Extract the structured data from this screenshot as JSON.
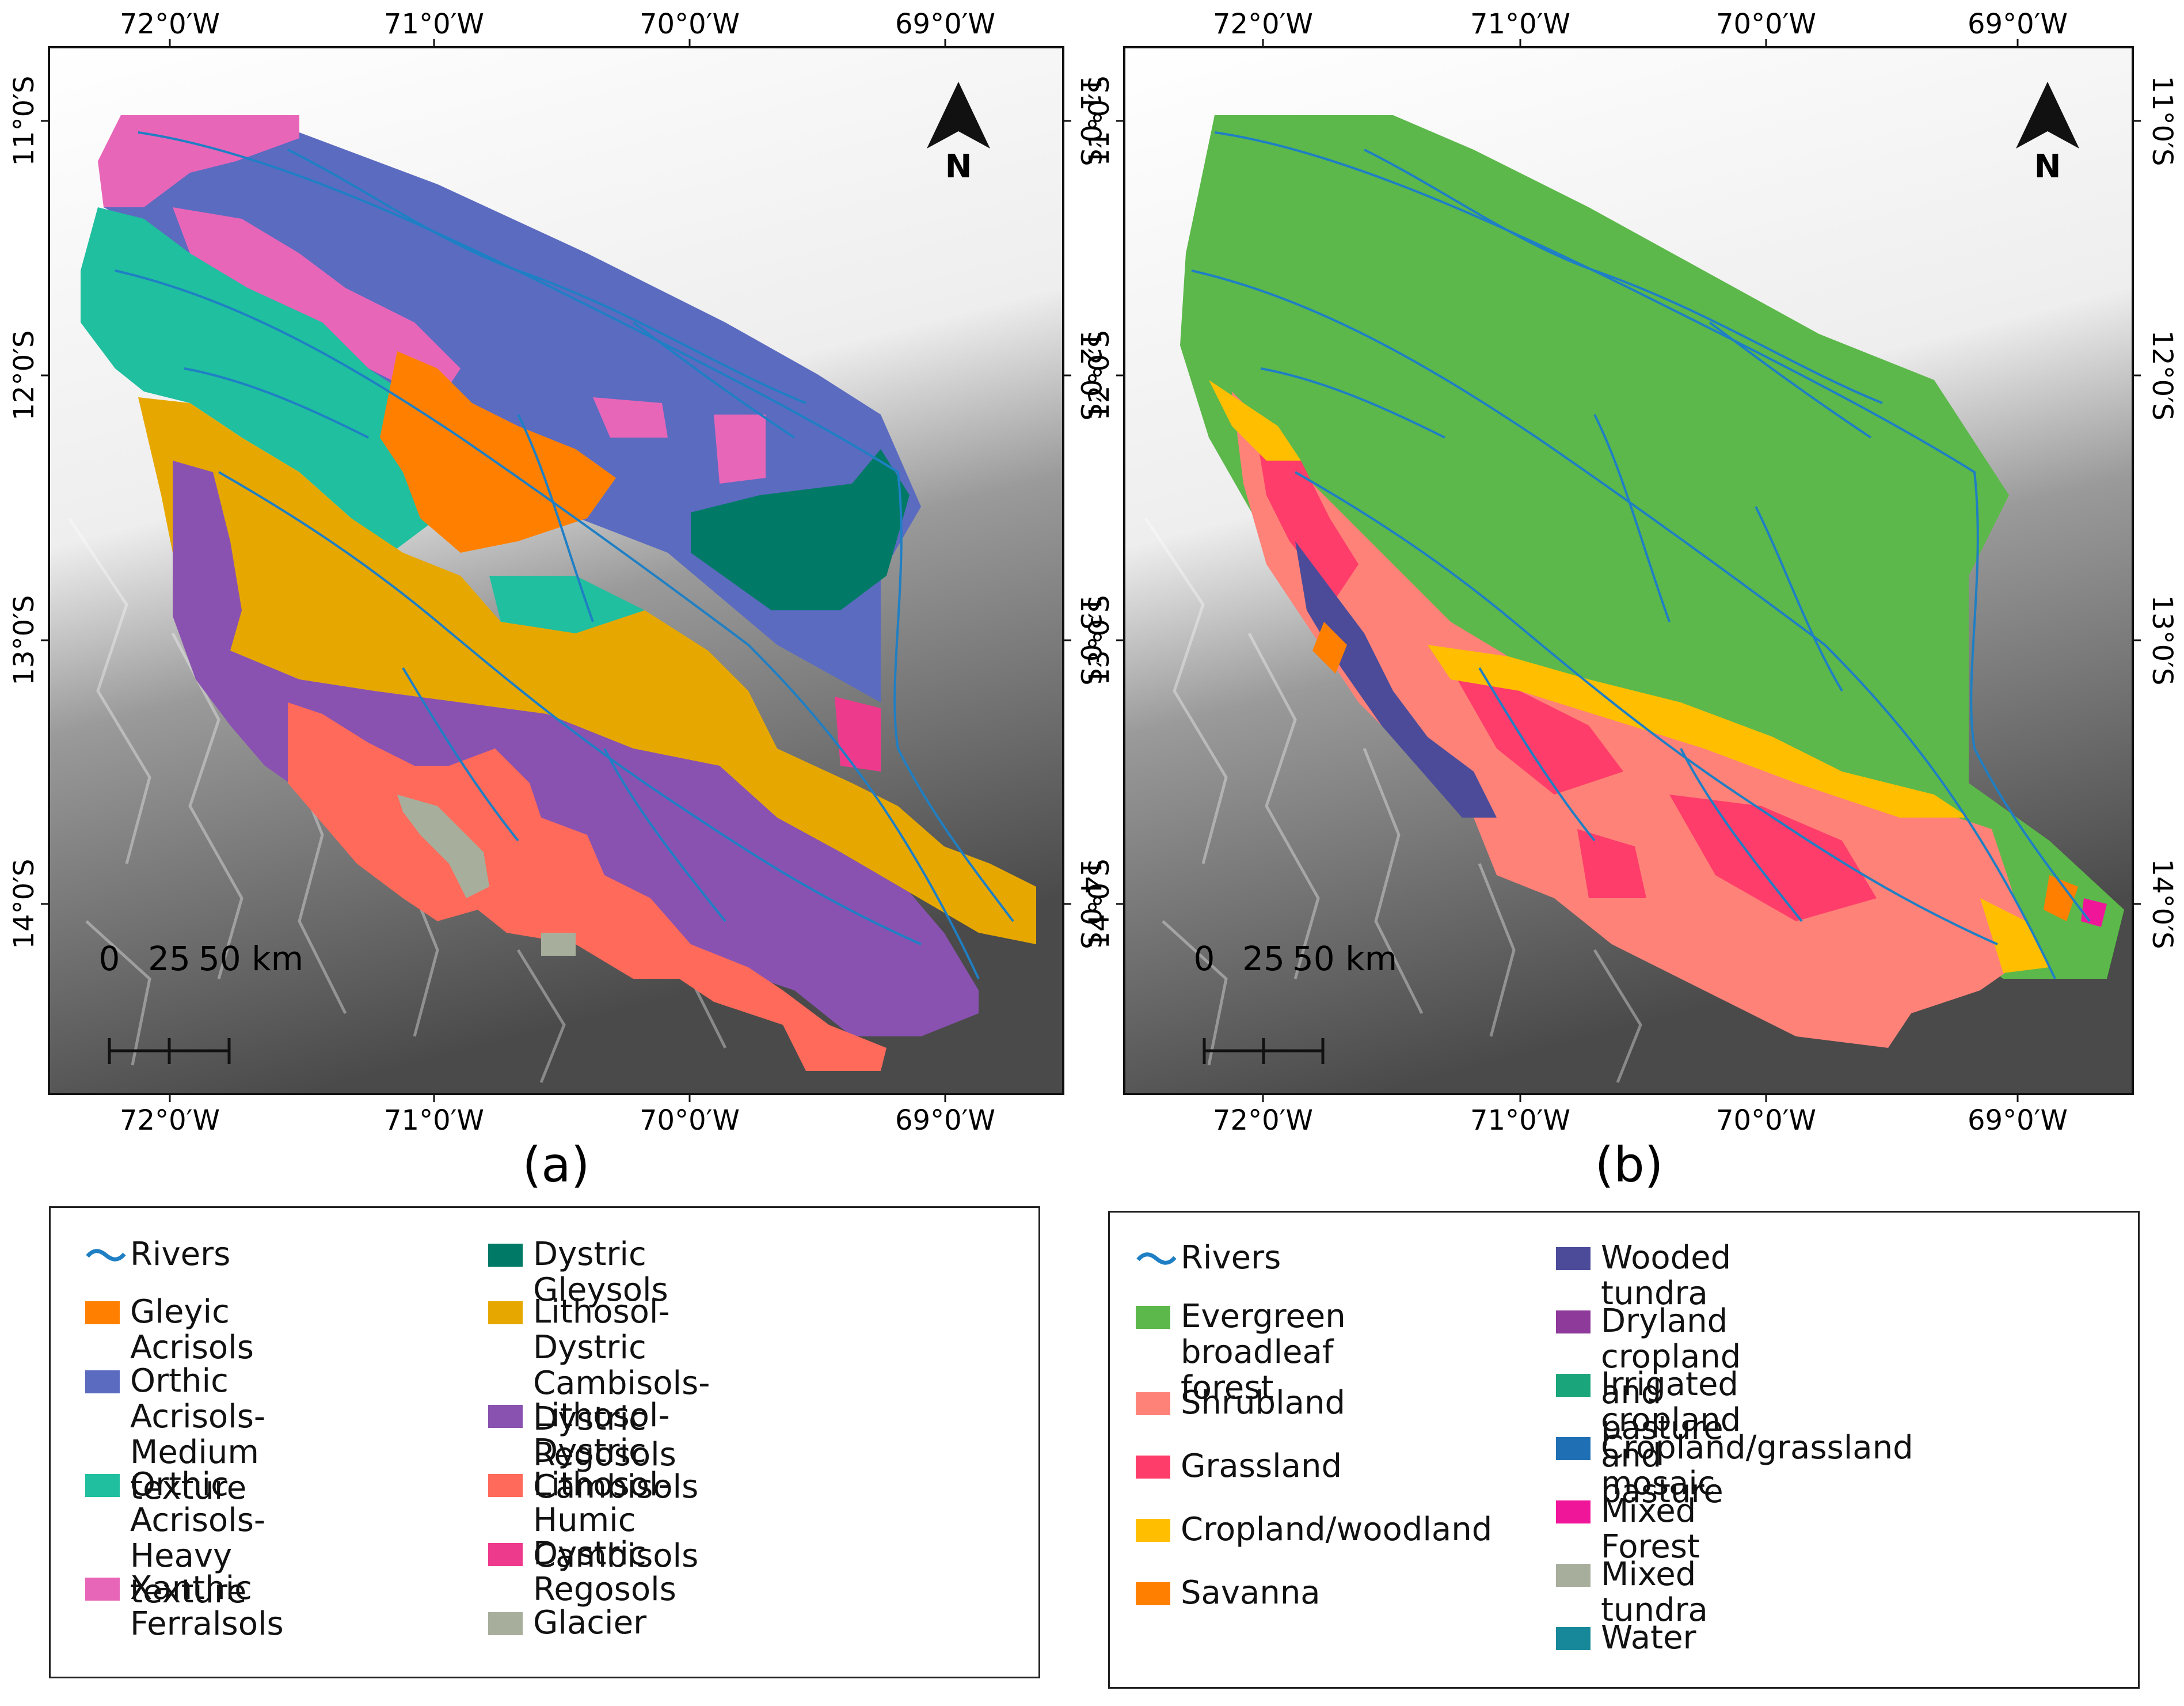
{
  "panels": [
    {
      "label": "(a)",
      "north": "N",
      "scale": {
        "ticks": [
          "0",
          "25",
          "50 km"
        ]
      }
    },
    {
      "label": "(b)",
      "north": "N",
      "scale": {
        "ticks": [
          "0",
          "25",
          "50 km"
        ]
      }
    }
  ],
  "axes": {
    "lon_ticks": [
      "72°0′W",
      "71°0′W",
      "70°0′W",
      "69°0′W"
    ],
    "lat_ticks": [
      "11°0′S",
      "12°0′S",
      "13°0′S",
      "14°0′S"
    ]
  },
  "legend_soil": {
    "col1": [
      {
        "label": "Rivers",
        "color": "#1f7fc4",
        "type": "line"
      },
      {
        "label": "Gleyic Acrisols",
        "color": "#ff8000"
      },
      {
        "label": "Orthic Acrisols-\nMedium texture",
        "color": "#5b6bc0"
      },
      {
        "label": "Orthic Acrisols-\n Heavy texture",
        "color": "#1fbf9f"
      },
      {
        "label": "Xanthic Ferralsols",
        "color": "#e866b8"
      }
    ],
    "col2": [
      {
        "label": "Dystric Gleysols",
        "color": "#007a66"
      },
      {
        "label": "Lithosol-Dystric Cambisols-\nDystric Regosols",
        "color": "#e6a800"
      },
      {
        "label": "Lithosol-Dystric Cambisols",
        "color": "#8a52b0"
      },
      {
        "label": "Lithosol-Humic Cambisols",
        "color": "#ff6a5a"
      },
      {
        "label": "Dystric Regosols",
        "color": "#ee3a8c"
      },
      {
        "label": "Glacier",
        "color": "#a8ae9c"
      }
    ]
  },
  "legend_landcover": {
    "col1": [
      {
        "label": "Rivers",
        "color": "#1f7fc4",
        "type": "line"
      },
      {
        "label": "Evergreen broadleaf\nforest",
        "color": "#5cb84a"
      },
      {
        "label": "Shrubland",
        "color": "#ff8278"
      },
      {
        "label": "Grassland",
        "color": "#ff3d6a"
      },
      {
        "label": "Cropland/woodland",
        "color": "#ffbf00"
      },
      {
        "label": "Savanna",
        "color": "#ff7f00"
      }
    ],
    "col2": [
      {
        "label": "Wooded tundra",
        "color": "#4b4b9a"
      },
      {
        "label": "Dryland cropland and pasture",
        "color": "#8e3a9a"
      },
      {
        "label": "Irrigated cropland and pasture",
        "color": "#1aa57a"
      },
      {
        "label": "Cropland/grassland mosaic",
        "color": "#1f6fb4"
      },
      {
        "label": "Mixed Forest",
        "color": "#f0169a"
      },
      {
        "label": "Mixed tundra",
        "color": "#a8ae9c"
      },
      {
        "label": "Water",
        "color": "#17889a"
      }
    ]
  }
}
